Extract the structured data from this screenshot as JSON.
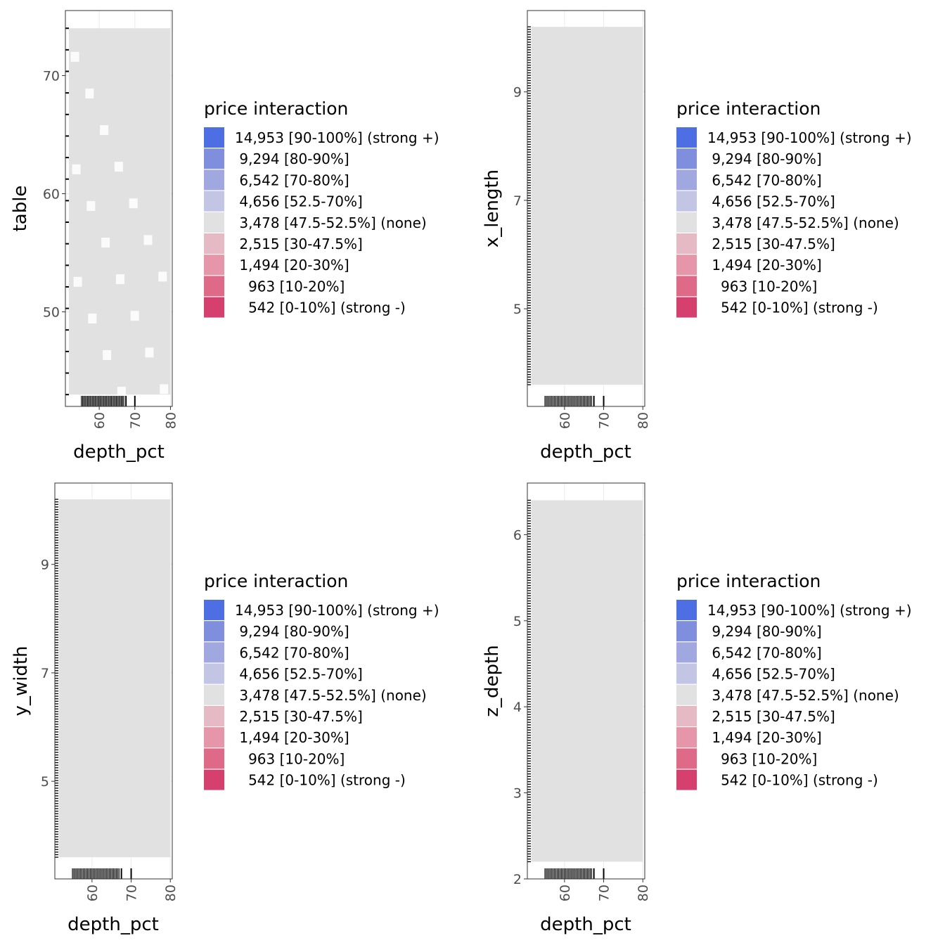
{
  "legend": {
    "title": "price interaction",
    "items": [
      {
        "label": "14,953 [90-100%] (strong +)",
        "color": "#4E6FE3"
      },
      {
        "label": " 9,294 [80-90%]",
        "color": "#7F8FDD"
      },
      {
        "label": " 6,542 [70-80%]",
        "color": "#A0A8DF"
      },
      {
        "label": " 4,656 [52.5-70%]",
        "color": "#C3C5E4"
      },
      {
        "label": " 3,478 [47.5-52.5%] (none)",
        "color": "#E1E1E1"
      },
      {
        "label": " 2,515 [30-47.5%]",
        "color": "#E6BAC5"
      },
      {
        "label": " 1,494 [20-30%]",
        "color": "#E596A8"
      },
      {
        "label": "   963 [10-20%]",
        "color": "#DF6A87"
      },
      {
        "label": "   542 [0-10%] (strong -)",
        "color": "#D6406E"
      }
    ]
  },
  "chart_data": [
    {
      "type": "heatmap",
      "title": "",
      "xlabel": "depth_pct",
      "ylabel": "table",
      "xlim": [
        50.5,
        80.5
      ],
      "ylim": [
        42,
        75.5
      ],
      "x_ticks": [
        60,
        70,
        80
      ],
      "y_ticks": [
        50,
        60,
        70
      ],
      "tile_region": {
        "x": [
          51.5,
          80
        ],
        "y": [
          43,
          74
        ]
      },
      "tile_value": "3,478 [47.5-52.5%] (none)",
      "grid": true,
      "rugs": true
    },
    {
      "type": "heatmap",
      "title": "",
      "xlabel": "depth_pct",
      "ylabel": "x_length",
      "xlim": [
        50.5,
        80.5
      ],
      "ylim": [
        3.2,
        10.5
      ],
      "x_ticks": [
        60,
        70,
        80
      ],
      "y_ticks": [
        5,
        7,
        9
      ],
      "tile_region": {
        "x": [
          51.5,
          80
        ],
        "y": [
          3.6,
          10.2
        ]
      },
      "tile_value": "3,478 [47.5-52.5%] (none)",
      "grid": true,
      "rugs": true
    },
    {
      "type": "heatmap",
      "title": "",
      "xlabel": "depth_pct",
      "ylabel": "y_width",
      "xlim": [
        50.5,
        80.5
      ],
      "ylim": [
        3.2,
        10.5
      ],
      "x_ticks": [
        60,
        70,
        80
      ],
      "y_ticks": [
        5,
        7,
        9
      ],
      "tile_region": {
        "x": [
          51.5,
          80
        ],
        "y": [
          3.6,
          10.2
        ]
      },
      "tile_value": "3,478 [47.5-52.5%] (none)",
      "grid": true,
      "rugs": true
    },
    {
      "type": "heatmap",
      "title": "",
      "xlabel": "depth_pct",
      "ylabel": "z_depth",
      "xlim": [
        50.5,
        80.5
      ],
      "ylim": [
        2,
        6.6
      ],
      "x_ticks": [
        60,
        70,
        80
      ],
      "y_ticks": [
        2,
        3,
        4,
        5,
        6
      ],
      "tile_region": {
        "x": [
          51.5,
          80
        ],
        "y": [
          2.2,
          6.4
        ]
      },
      "tile_value": "3,478 [47.5-52.5%] (none)",
      "grid": true,
      "rugs": true
    }
  ]
}
